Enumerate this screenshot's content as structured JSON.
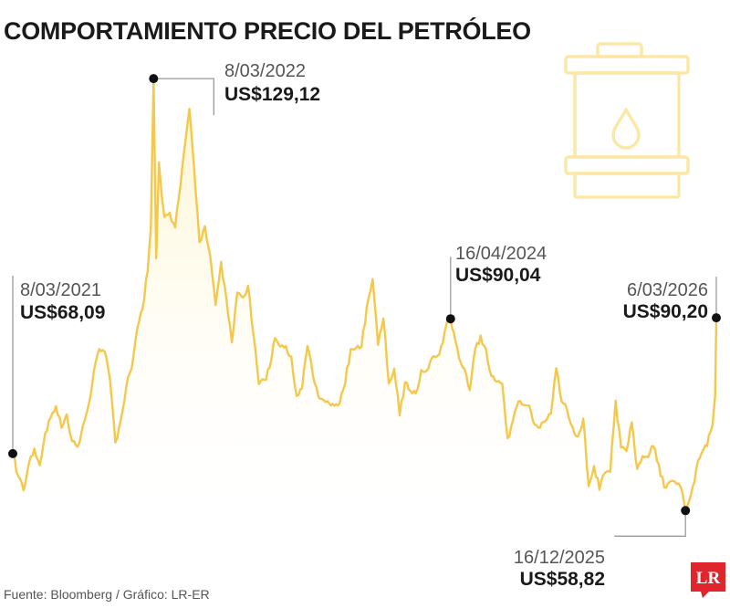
{
  "title": "COMPORTAMIENTO PRECIO DEL PETRÓLEO",
  "source": "Fuente: Bloomberg / Gráfico: LR-ER",
  "logo_text": "LR",
  "colors": {
    "line": "#f5c84c",
    "area_top": "#fff3c4",
    "icon": "#fbe7a6",
    "logo": "#e0262d",
    "text": "#1a1a1a"
  },
  "icon": "oil-barrel-icon",
  "chart_data": {
    "type": "line",
    "title": "COMPORTAMIENTO PRECIO DEL PETRÓLEO",
    "xlabel": "",
    "ylabel": "",
    "x_range": [
      "2021-03-08",
      "2026-03-06"
    ],
    "ylim": [
      55,
      133
    ],
    "grid": false,
    "annotations": [
      {
        "date": "8/03/2021",
        "label": "US$68,09",
        "x": "2021-03-08",
        "y": 68.09
      },
      {
        "date": "8/03/2022",
        "label": "US$129,12",
        "x": "2022-03-08",
        "y": 129.12
      },
      {
        "date": "16/04/2024",
        "label": "US$90,04",
        "x": "2024-04-16",
        "y": 90.04
      },
      {
        "date": "16/12/2025",
        "label": "US$58,82",
        "x": "2025-12-16",
        "y": 58.82
      },
      {
        "date": "6/03/2026",
        "label": "US$90,20",
        "x": "2026-03-06",
        "y": 90.2
      }
    ],
    "series": [
      {
        "points": [
          [
            "2021-03-08",
            68.1
          ],
          [
            "2021-03-22",
            64.5
          ],
          [
            "2021-04-05",
            62.1
          ],
          [
            "2021-04-19",
            66.6
          ],
          [
            "2021-05-03",
            68.9
          ],
          [
            "2021-05-17",
            66.2
          ],
          [
            "2021-05-31",
            71.4
          ],
          [
            "2021-06-14",
            73.9
          ],
          [
            "2021-06-28",
            75.8
          ],
          [
            "2021-07-12",
            72.3
          ],
          [
            "2021-07-26",
            74.5
          ],
          [
            "2021-08-09",
            70.1
          ],
          [
            "2021-08-23",
            69.2
          ],
          [
            "2021-09-06",
            72.7
          ],
          [
            "2021-09-20",
            75.8
          ],
          [
            "2021-10-04",
            81.5
          ],
          [
            "2021-10-18",
            85.1
          ],
          [
            "2021-11-01",
            84.7
          ],
          [
            "2021-11-15",
            80.2
          ],
          [
            "2021-11-29",
            69.9
          ],
          [
            "2021-12-13",
            73.6
          ],
          [
            "2021-12-27",
            78.9
          ],
          [
            "2022-01-10",
            81.9
          ],
          [
            "2022-01-24",
            88.2
          ],
          [
            "2022-02-07",
            91.6
          ],
          [
            "2022-02-21",
            97.9
          ],
          [
            "2022-03-01",
            104.9
          ],
          [
            "2022-03-08",
            129.1
          ],
          [
            "2022-03-15",
            99.9
          ],
          [
            "2022-03-22",
            115.5
          ],
          [
            "2022-03-29",
            110.2
          ],
          [
            "2022-04-05",
            106.6
          ],
          [
            "2022-04-19",
            107.3
          ],
          [
            "2022-05-03",
            104.9
          ],
          [
            "2022-05-17",
            111.9
          ],
          [
            "2022-05-31",
            119.7
          ],
          [
            "2022-06-09",
            124.2
          ],
          [
            "2022-06-21",
            114.7
          ],
          [
            "2022-07-05",
            102.5
          ],
          [
            "2022-07-19",
            105.1
          ],
          [
            "2022-08-02",
            100.3
          ],
          [
            "2022-08-16",
            92.3
          ],
          [
            "2022-08-30",
            99.3
          ],
          [
            "2022-09-13",
            93.2
          ],
          [
            "2022-09-27",
            86.2
          ],
          [
            "2022-10-11",
            94.3
          ],
          [
            "2022-10-25",
            93.5
          ],
          [
            "2022-11-08",
            95.4
          ],
          [
            "2022-11-22",
            87.4
          ],
          [
            "2022-12-06",
            79.4
          ],
          [
            "2022-12-20",
            80.1
          ],
          [
            "2023-01-03",
            82.1
          ],
          [
            "2023-01-17",
            86.9
          ],
          [
            "2023-01-31",
            85.5
          ],
          [
            "2023-02-14",
            85.6
          ],
          [
            "2023-02-28",
            83.9
          ],
          [
            "2023-03-14",
            77.5
          ],
          [
            "2023-03-28",
            78.7
          ],
          [
            "2023-04-11",
            85.6
          ],
          [
            "2023-04-25",
            80.8
          ],
          [
            "2023-05-09",
            77.4
          ],
          [
            "2023-05-23",
            76.8
          ],
          [
            "2023-06-06",
            76.3
          ],
          [
            "2023-06-20",
            75.9
          ],
          [
            "2023-07-04",
            76.3
          ],
          [
            "2023-07-18",
            79.6
          ],
          [
            "2023-08-01",
            85.1
          ],
          [
            "2023-08-15",
            85.3
          ],
          [
            "2023-08-29",
            85.5
          ],
          [
            "2023-09-12",
            92.1
          ],
          [
            "2023-09-27",
            96.5
          ],
          [
            "2023-10-11",
            85.8
          ],
          [
            "2023-10-25",
            90.1
          ],
          [
            "2023-11-08",
            79.5
          ],
          [
            "2023-11-22",
            81.9
          ],
          [
            "2023-12-06",
            74.3
          ],
          [
            "2023-12-20",
            79.7
          ],
          [
            "2024-01-03",
            78.3
          ],
          [
            "2024-01-17",
            77.9
          ],
          [
            "2024-01-31",
            81.7
          ],
          [
            "2024-02-14",
            81.6
          ],
          [
            "2024-02-28",
            83.7
          ],
          [
            "2024-03-13",
            84.0
          ],
          [
            "2024-03-27",
            86.1
          ],
          [
            "2024-04-10",
            90.5
          ],
          [
            "2024-04-16",
            90.0
          ],
          [
            "2024-04-24",
            88.0
          ],
          [
            "2024-05-08",
            83.6
          ],
          [
            "2024-05-22",
            81.9
          ],
          [
            "2024-06-05",
            78.4
          ],
          [
            "2024-06-19",
            85.1
          ],
          [
            "2024-07-03",
            87.3
          ],
          [
            "2024-07-17",
            85.1
          ],
          [
            "2024-07-31",
            80.7
          ],
          [
            "2024-08-14",
            79.8
          ],
          [
            "2024-08-28",
            79.5
          ],
          [
            "2024-09-11",
            70.6
          ],
          [
            "2024-09-25",
            73.5
          ],
          [
            "2024-10-09",
            76.6
          ],
          [
            "2024-10-23",
            76.0
          ],
          [
            "2024-11-06",
            75.9
          ],
          [
            "2024-11-20",
            72.8
          ],
          [
            "2024-12-04",
            72.3
          ],
          [
            "2024-12-18",
            73.4
          ],
          [
            "2025-01-01",
            74.6
          ],
          [
            "2025-01-15",
            82.0
          ],
          [
            "2025-01-29",
            76.6
          ],
          [
            "2025-02-12",
            75.2
          ],
          [
            "2025-02-26",
            72.5
          ],
          [
            "2025-03-12",
            70.9
          ],
          [
            "2025-03-26",
            73.8
          ],
          [
            "2025-04-09",
            62.8
          ],
          [
            "2025-04-23",
            66.1
          ],
          [
            "2025-05-07",
            62.2
          ],
          [
            "2025-05-21",
            64.9
          ],
          [
            "2025-06-04",
            65.1
          ],
          [
            "2025-06-18",
            76.7
          ],
          [
            "2025-07-02",
            69.1
          ],
          [
            "2025-07-16",
            68.5
          ],
          [
            "2025-07-30",
            73.2
          ],
          [
            "2025-08-13",
            65.6
          ],
          [
            "2025-08-27",
            67.7
          ],
          [
            "2025-09-10",
            67.5
          ],
          [
            "2025-09-24",
            69.3
          ],
          [
            "2025-10-08",
            66.3
          ],
          [
            "2025-10-22",
            62.6
          ],
          [
            "2025-11-05",
            63.5
          ],
          [
            "2025-11-19",
            63.5
          ],
          [
            "2025-12-03",
            62.7
          ],
          [
            "2025-12-16",
            58.8
          ],
          [
            "2025-12-30",
            61.3
          ],
          [
            "2026-01-13",
            65.5
          ],
          [
            "2026-01-27",
            68.2
          ],
          [
            "2026-02-10",
            69.3
          ],
          [
            "2026-02-24",
            72.7
          ],
          [
            "2026-03-03",
            77.5
          ],
          [
            "2026-03-06",
            90.2
          ]
        ]
      }
    ]
  }
}
